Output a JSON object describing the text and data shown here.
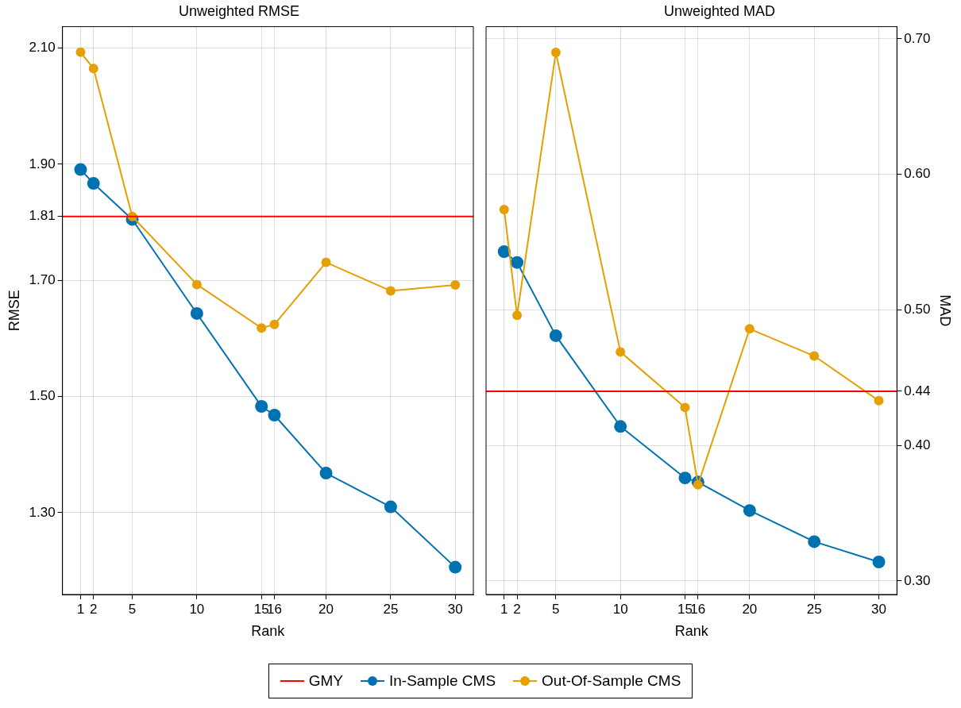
{
  "chart_data": [
    {
      "type": "line",
      "title": "Unweighted RMSE",
      "xlabel": "Rank",
      "ylabel": "RMSE",
      "x": [
        1,
        2,
        5,
        10,
        15,
        16,
        20,
        25,
        30
      ],
      "xlim": [
        -0.4,
        31.4
      ],
      "xticks": [
        1,
        2,
        5,
        10,
        15,
        16,
        20,
        25,
        30
      ],
      "ylim": [
        1.159,
        2.137
      ],
      "yticks": [
        {
          "value": 1.3,
          "label": "1.30"
        },
        {
          "value": 1.5,
          "label": "1.50"
        },
        {
          "value": 1.7,
          "label": "1.70"
        },
        {
          "value": 1.81,
          "label": "1.81"
        },
        {
          "value": 1.9,
          "label": "1.90"
        },
        {
          "value": 2.1,
          "label": "2.10"
        }
      ],
      "grid": true,
      "legend": "bottom",
      "marker": "circle",
      "line_style": "solid",
      "ref_lines": [
        {
          "axis": "y",
          "value": 1.81,
          "label": "GMY",
          "color": "#ff0000"
        }
      ],
      "series": [
        {
          "name": "In-Sample CMS",
          "color": "#0072b2",
          "values": [
            1.891,
            1.867,
            1.805,
            1.643,
            1.483,
            1.468,
            1.368,
            1.31,
            1.206
          ]
        },
        {
          "name": "Out-Of-Sample CMS",
          "color": "#e69f00",
          "values": [
            2.093,
            2.065,
            1.81,
            1.693,
            1.618,
            1.624,
            1.731,
            1.682,
            1.692
          ]
        }
      ]
    },
    {
      "type": "line",
      "title": "Unweighted MAD",
      "xlabel": "Rank",
      "y2label": "MAD",
      "x": [
        1,
        2,
        5,
        10,
        15,
        16,
        20,
        25,
        30
      ],
      "xlim": [
        -0.4,
        31.4
      ],
      "xticks": [
        1,
        2,
        5,
        10,
        15,
        16,
        20,
        25,
        30
      ],
      "y2lim": [
        0.29,
        0.709
      ],
      "y2ticks": [
        {
          "value": 0.3,
          "label": "0.30"
        },
        {
          "value": 0.4,
          "label": "0.40"
        },
        {
          "value": 0.44,
          "label": "0.44"
        },
        {
          "value": 0.5,
          "label": "0.50"
        },
        {
          "value": 0.6,
          "label": "0.60"
        },
        {
          "value": 0.7,
          "label": "0.70"
        }
      ],
      "grid": true,
      "legend": "bottom",
      "marker": "circle",
      "line_style": "solid",
      "ref_lines": [
        {
          "axis": "y2",
          "value": 0.44,
          "color": "#ff0000"
        }
      ],
      "series": [
        {
          "name": "In-Sample CMS",
          "color": "#0072b2",
          "axis": "y2",
          "values": [
            0.543,
            0.535,
            0.481,
            0.414,
            0.376,
            0.373,
            0.352,
            0.329,
            0.314
          ]
        },
        {
          "name": "Out-Of-Sample CMS",
          "color": "#e69f00",
          "axis": "y2",
          "values": [
            0.574,
            0.496,
            0.69,
            0.469,
            0.428,
            0.371,
            0.486,
            0.466,
            0.433
          ]
        }
      ]
    }
  ]
}
